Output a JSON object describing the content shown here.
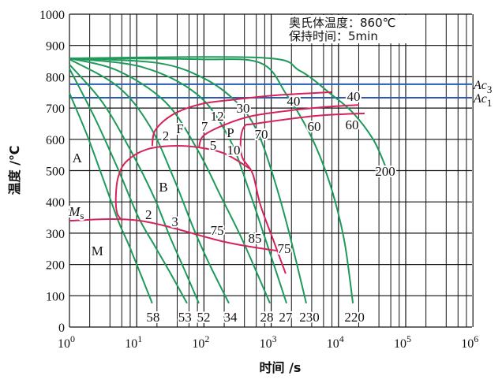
{
  "chart_data": {
    "type": "line",
    "title": "",
    "xlabel": "时间 /s",
    "ylabel": "温度 /℃",
    "x_scale": "log",
    "xlim": [
      1,
      1000000
    ],
    "ylim": [
      0,
      1000
    ],
    "grid": true,
    "x_ticks": [
      {
        "base": "10",
        "exp": "0"
      },
      {
        "base": "10",
        "exp": "1"
      },
      {
        "base": "10",
        "exp": "2"
      },
      {
        "base": "10",
        "exp": "3"
      },
      {
        "base": "10",
        "exp": "4"
      },
      {
        "base": "10",
        "exp": "5"
      },
      {
        "base": "10",
        "exp": "6"
      }
    ],
    "y_ticks": [
      "0",
      "100",
      "200",
      "300",
      "400",
      "500",
      "600",
      "700",
      "800",
      "900",
      "1000"
    ],
    "notes": [
      "奥氏体温度：860℃",
      "保持时间：5min"
    ],
    "reference_lines": [
      {
        "name": "Ac",
        "sub": "3",
        "temperature": 776,
        "color": "#2a5bb0"
      },
      {
        "name": "Ac",
        "sub": "1",
        "temperature": 733,
        "color": "#2a5bb0"
      }
    ],
    "colors": {
      "cooling": "#1f9a5a",
      "transformation": "#d6245a",
      "reference": "#2a5bb0",
      "grid": "#111111"
    },
    "cooling_curves": [
      {
        "end_label": "58",
        "points": [
          [
            1,
            748
          ],
          [
            1.8,
            617
          ],
          [
            3.1,
            479
          ],
          [
            5.3,
            340
          ],
          [
            8,
            252
          ],
          [
            17,
            76
          ]
        ]
      },
      {
        "end_label": "53",
        "points": [
          [
            1,
            826
          ],
          [
            2.4,
            667
          ],
          [
            5.3,
            504
          ],
          [
            10.5,
            353
          ],
          [
            18,
            264
          ],
          [
            31,
            176
          ],
          [
            56,
            76
          ]
        ]
      },
      {
        "end_label": "52",
        "points": [
          [
            1,
            839
          ],
          [
            3.1,
            718
          ],
          [
            8,
            567
          ],
          [
            18,
            416
          ],
          [
            31,
            290
          ],
          [
            53,
            176
          ],
          [
            84,
            76
          ]
        ]
      },
      {
        "end_label": "34",
        "points": [
          [
            1,
            856
          ],
          [
            5.3,
            768
          ],
          [
            15.7,
            642
          ],
          [
            35,
            479
          ],
          [
            70,
            315
          ],
          [
            120,
            202
          ],
          [
            235,
            76
          ]
        ]
      },
      {
        "end_label": "28",
        "points": [
          [
            1,
            859
          ],
          [
            5.3,
            819
          ],
          [
            27,
            718
          ],
          [
            80,
            567
          ],
          [
            180,
            416
          ],
          [
            352,
            290
          ],
          [
            605,
            176
          ],
          [
            958,
            76
          ]
        ]
      },
      {
        "end_label": "27",
        "points": [
          [
            1,
            859
          ],
          [
            12,
            831
          ],
          [
            80,
            743
          ],
          [
            235,
            605
          ],
          [
            461,
            441
          ],
          [
            793,
            290
          ],
          [
            1190,
            176
          ],
          [
            1690,
            76
          ]
        ]
      },
      {
        "end_label": "230",
        "points": [
          [
            1,
            859
          ],
          [
            20.6,
            844
          ],
          [
            104,
            793
          ],
          [
            308,
            718
          ],
          [
            605,
            630
          ],
          [
            1040,
            491
          ],
          [
            1780,
            315
          ],
          [
            3320,
            76
          ]
        ]
      },
      {
        "end_label": "220",
        "points": [
          [
            1,
            859
          ],
          [
            80,
            856
          ],
          [
            692,
            844
          ],
          [
            1690,
            743
          ],
          [
            3510,
            630
          ],
          [
            6010,
            516
          ],
          [
            9020,
            398
          ],
          [
            12500,
            264
          ],
          [
            16400,
            76
          ]
        ]
      },
      {
        "end_label": "200",
        "points": [
          [
            1,
            859
          ],
          [
            692,
            861
          ],
          [
            2670,
            819
          ],
          [
            7890,
            743
          ],
          [
            16400,
            685
          ],
          [
            33000,
            599
          ],
          [
            49500,
            516
          ]
        ]
      }
    ],
    "transformation_curves": [
      {
        "name": "ferrite-start",
        "points": [
          [
            17,
            579
          ],
          [
            19,
            630
          ],
          [
            35,
            680
          ],
          [
            91,
            713
          ],
          [
            308,
            728
          ],
          [
            1190,
            741
          ],
          [
            7890,
            751
          ]
        ]
      },
      {
        "name": "pearlite-start",
        "points": [
          [
            84,
            574
          ],
          [
            99,
            612
          ],
          [
            205,
            647
          ],
          [
            528,
            675
          ],
          [
            2040,
            693
          ],
          [
            7890,
            705
          ],
          [
            20300,
            710
          ]
        ]
      },
      {
        "name": "pearlite-finish",
        "points": [
          [
            1640,
            171
          ],
          [
            1100,
            272
          ],
          [
            692,
            390
          ],
          [
            528,
            491
          ],
          [
            372,
            542
          ],
          [
            352,
            599
          ],
          [
            403,
            642
          ],
          [
            573,
            650
          ],
          [
            4590,
            675
          ],
          [
            24500,
            683
          ]
        ]
      },
      {
        "name": "bainite-start",
        "points": [
          [
            500,
            504
          ],
          [
            205,
            554
          ],
          [
            84,
            574
          ],
          [
            34,
            579
          ],
          [
            13.7,
            567
          ],
          [
            7,
            529
          ],
          [
            5.3,
            479
          ],
          [
            4.9,
            416
          ],
          [
            5.1,
            365
          ],
          [
            6.1,
            340
          ]
        ]
      },
      {
        "name": "martensite-start",
        "points": [
          [
            1,
            340
          ],
          [
            11,
            340
          ],
          [
            205,
            272
          ],
          [
            1190,
            244
          ]
        ]
      }
    ],
    "phase_labels": [
      {
        "text": "A",
        "t": 1.3,
        "T": 541
      },
      {
        "text": "B",
        "t": 25,
        "T": 448
      },
      {
        "text": "F",
        "t": 44,
        "T": 635
      },
      {
        "text": "P",
        "t": 248,
        "T": 622
      },
      {
        "text": "M",
        "t": 2.6,
        "T": 244
      }
    ],
    "ms_label": {
      "text": "M",
      "sub": "s",
      "t": 1.27,
      "T": 370
    },
    "annotations": [
      {
        "text": "2",
        "t": 27,
        "T": 612
      },
      {
        "text": "7",
        "t": 102,
        "T": 642
      },
      {
        "text": "12",
        "t": 157,
        "T": 675
      },
      {
        "text": "30",
        "t": 382,
        "T": 700
      },
      {
        "text": "40",
        "t": 2150,
        "T": 723
      },
      {
        "text": "40",
        "t": 16800,
        "T": 738
      },
      {
        "text": "5",
        "t": 137,
        "T": 582
      },
      {
        "text": "10",
        "t": 276,
        "T": 567
      },
      {
        "text": "70",
        "t": 711,
        "T": 617
      },
      {
        "text": "60",
        "t": 4350,
        "T": 642
      },
      {
        "text": "60",
        "t": 15900,
        "T": 647
      },
      {
        "text": "200",
        "t": 49500,
        "T": 499
      },
      {
        "text": "2",
        "t": 15,
        "T": 360
      },
      {
        "text": "3",
        "t": 37,
        "T": 338
      },
      {
        "text": "75",
        "t": 157,
        "T": 310
      },
      {
        "text": "85",
        "t": 573,
        "T": 285
      },
      {
        "text": "75",
        "t": 1560,
        "T": 252
      },
      {
        "text": "58",
        "t": 17.5,
        "T": 33
      },
      {
        "text": "53",
        "t": 52,
        "T": 33
      },
      {
        "text": "52",
        "t": 99,
        "T": 33
      },
      {
        "text": "34",
        "t": 248,
        "T": 33
      },
      {
        "text": "28",
        "t": 860,
        "T": 33
      },
      {
        "text": "27",
        "t": 1640,
        "T": 33
      },
      {
        "text": "230",
        "t": 3700,
        "T": 33
      },
      {
        "text": "220",
        "t": 17300,
        "T": 33
      }
    ]
  }
}
